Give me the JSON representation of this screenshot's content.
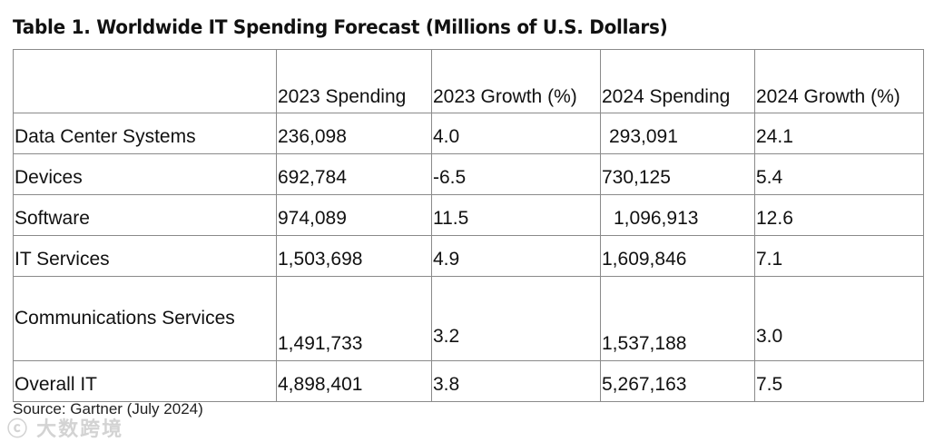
{
  "title": "Table 1. Worldwide IT Spending Forecast (Millions of U.S. Dollars)",
  "columns": [
    "",
    "2023 Spending",
    "2023 Growth (%)",
    "2024 Spending",
    "2024 Growth (%)"
  ],
  "rows": [
    {
      "segment": "Data Center Systems",
      "s2023": "236,098",
      "g2023": "4.0",
      "s2024": "293,091",
      "g2024": "24.1"
    },
    {
      "segment": "Devices",
      "s2023": "692,784",
      "g2023": "-6.5",
      "s2024": "730,125",
      "g2024": "5.4"
    },
    {
      "segment": "Software",
      "s2023": "974,089",
      "g2023": "11.5",
      "s2024": "1,096,913",
      "g2024": "12.6"
    },
    {
      "segment": "IT Services",
      "s2023": "1,503,698",
      "g2023": "4.9",
      "s2024": "1,609,846",
      "g2024": "7.1"
    },
    {
      "segment": "Communications Services",
      "s2023": "1,491,733",
      "g2023": "3.2",
      "s2024": "1,537,188",
      "g2024": "3.0"
    },
    {
      "segment": "Overall IT",
      "s2023": "4,898,401",
      "g2023": "3.8",
      "s2024": "5,267,163",
      "g2024": "7.5"
    }
  ],
  "source": "Source: Gartner (July 2024)",
  "watermark": "大数跨境"
}
